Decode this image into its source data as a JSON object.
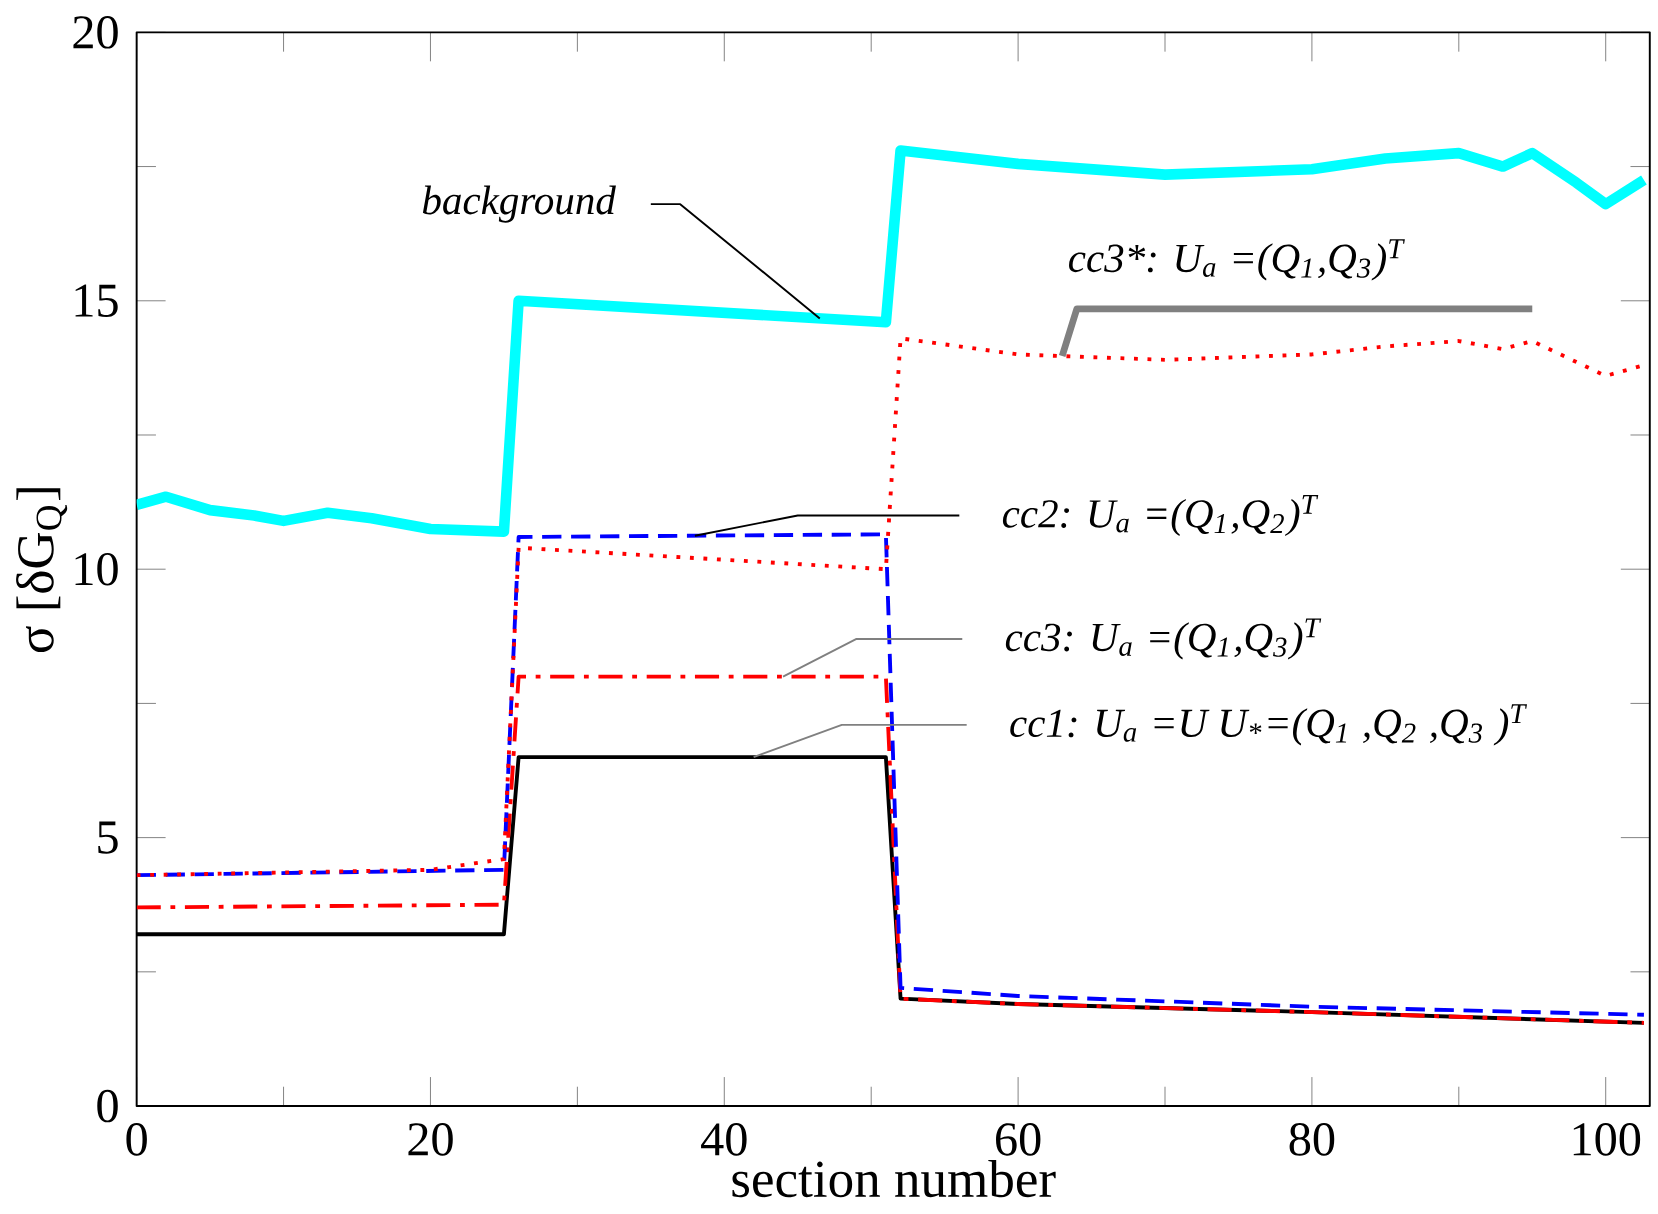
{
  "chart_data": {
    "type": "line",
    "xlabel": "section number",
    "ylabel": "σ [δG$_{Q}$]",
    "xlim": [
      0,
      103
    ],
    "xticks": [
      0,
      20,
      40,
      60,
      80,
      100
    ],
    "ylim": [
      0,
      20
    ],
    "yticks": [
      0,
      5,
      10,
      15,
      20
    ],
    "grid": false,
    "marker": "none",
    "series": [
      {
        "name": "background",
        "color": "#00ffff",
        "line_style": "solid",
        "x": [
          0,
          2,
          5,
          8,
          10,
          13,
          16,
          20,
          25,
          26,
          51,
          52,
          60,
          70,
          80,
          85,
          90,
          93,
          95,
          98,
          100,
          102.6
        ],
        "values": [
          11.2,
          11.35,
          11.1,
          11.0,
          10.9,
          11.05,
          10.95,
          10.75,
          10.7,
          15.0,
          14.6,
          17.8,
          17.55,
          17.35,
          17.45,
          17.65,
          17.75,
          17.5,
          17.75,
          17.2,
          16.8,
          17.25
        ]
      },
      {
        "name": "cc3*: U$_{a}$ =(Q$_{1}$,Q$_{3}$)$^{T}$",
        "color": "#ff0000",
        "line_style": "dotted",
        "x": [
          0,
          20,
          25,
          26,
          51,
          52,
          60,
          70,
          80,
          85,
          90,
          93,
          95,
          100,
          102.6
        ],
        "values": [
          4.3,
          4.4,
          4.6,
          10.4,
          10.0,
          14.3,
          14.0,
          13.9,
          14.0,
          14.15,
          14.25,
          14.1,
          14.25,
          13.6,
          13.8
        ]
      },
      {
        "name": "cc2: U$_{a}$ =(Q$_{1}$,Q$_{2}$)$^{T}$",
        "color": "#0000ff",
        "line_style": "dashed",
        "x": [
          0,
          25,
          26,
          51,
          52,
          60,
          80,
          102.6
        ],
        "values": [
          4.3,
          4.4,
          10.6,
          10.65,
          2.2,
          2.05,
          1.85,
          1.7
        ]
      },
      {
        "name": "cc3: U$_{a}$ =(Q$_{1}$,Q$_{3}$)$^{T}$",
        "color": "#ff0000",
        "line_style": "dashdot",
        "x": [
          0,
          25,
          26,
          51,
          52,
          60,
          80,
          102.6
        ],
        "values": [
          3.7,
          3.75,
          8.0,
          8.0,
          2.0,
          1.9,
          1.75,
          1.55
        ]
      },
      {
        "name": "cc1: U$_{a}$ =U  U$_{*}$=(Q$_{1}$ ,Q$_{2}$ ,Q$_{3}$ )$^{T}$",
        "color": "#000000",
        "line_style": "solid",
        "x": [
          0,
          25,
          26,
          51,
          52,
          60,
          80,
          102.6
        ],
        "values": [
          3.2,
          3.2,
          6.5,
          6.5,
          2.0,
          1.9,
          1.75,
          1.55
        ]
      }
    ]
  }
}
